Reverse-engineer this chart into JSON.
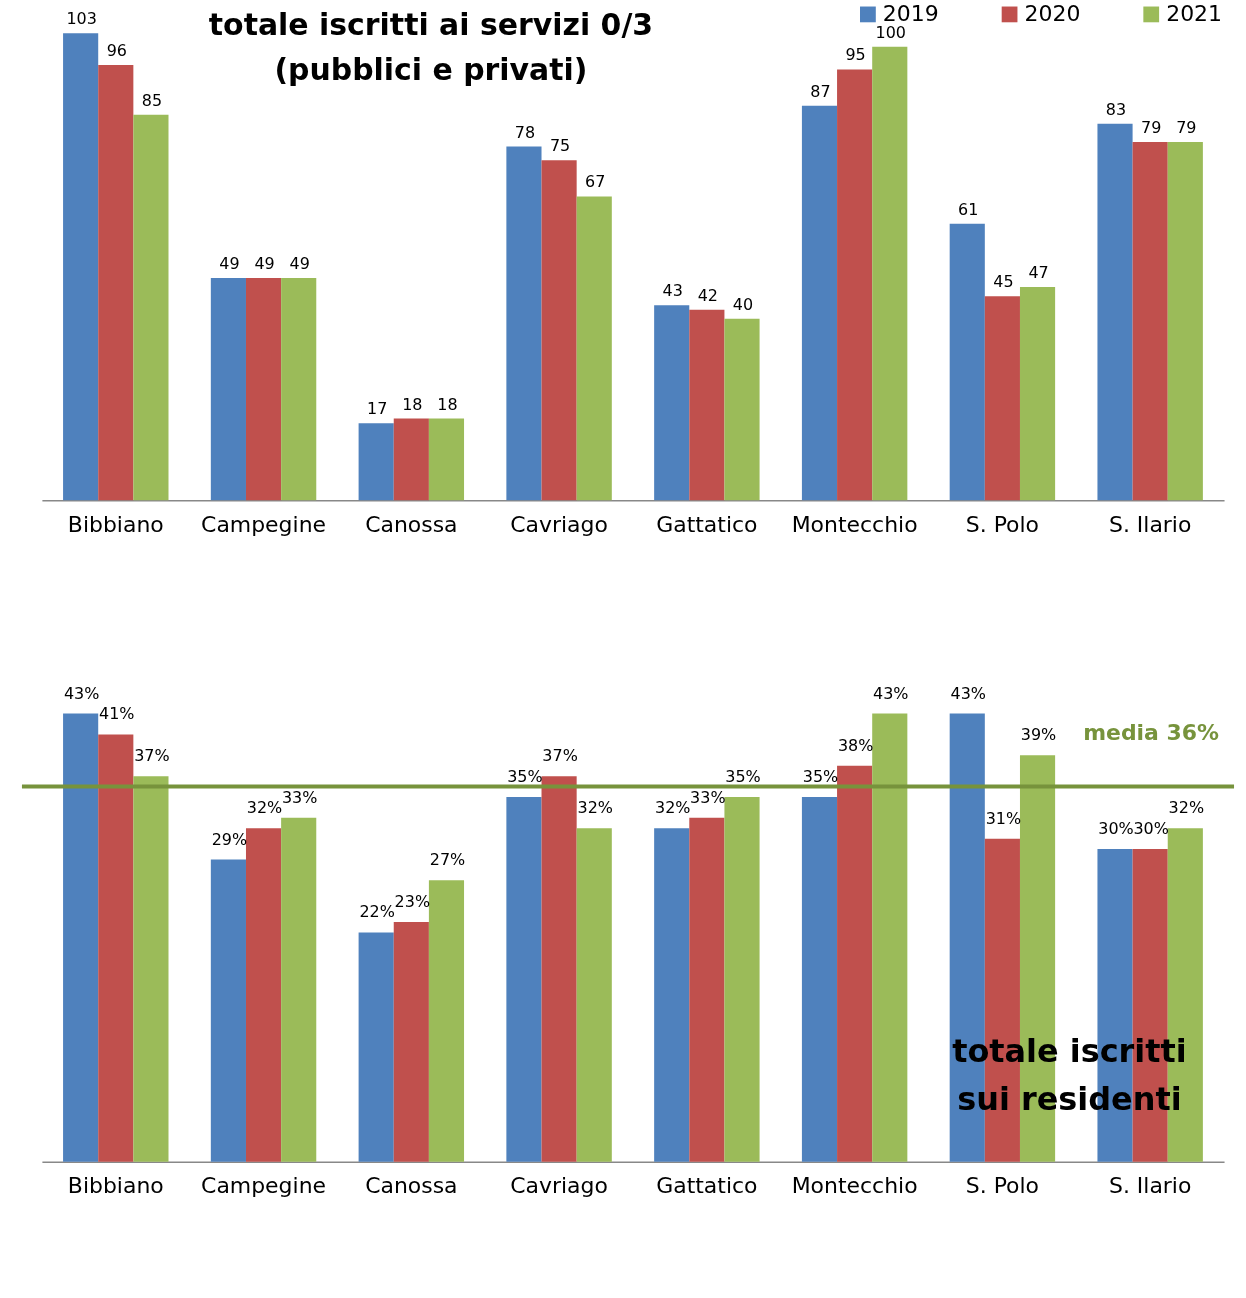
{
  "chart_data": [
    {
      "type": "bar",
      "title": "totale iscritti ai servizi 0/3\n(pubblici e privati)",
      "categories": [
        "Bibbiano",
        "Campegine",
        "Canossa",
        "Cavriago",
        "Gattatico",
        "Montecchio",
        "S. Polo",
        "S. Ilario"
      ],
      "series": [
        {
          "name": "2019",
          "color": "#4f81bd",
          "values": [
            103,
            49,
            17,
            78,
            43,
            87,
            61,
            83
          ]
        },
        {
          "name": "2020",
          "color": "#c0504d",
          "values": [
            96,
            49,
            18,
            75,
            42,
            95,
            45,
            79
          ]
        },
        {
          "name": "2021",
          "color": "#9bbb59",
          "values": [
            85,
            49,
            18,
            67,
            40,
            100,
            47,
            79
          ]
        }
      ],
      "data_labels": true,
      "legend": "top right",
      "tick_labels": "x",
      "grid": false
    },
    {
      "type": "bar",
      "title": "totale iscritti\nsui residenti",
      "categories": [
        "Bibbiano",
        "Campegine",
        "Canossa",
        "Cavriago",
        "Gattatico",
        "Montecchio",
        "S. Polo",
        "S. Ilario"
      ],
      "series": [
        {
          "name": "2019",
          "color": "#4f81bd",
          "values": [
            43,
            29,
            22,
            35,
            32,
            35,
            43,
            30
          ],
          "value_labels": [
            "43%",
            "29%",
            "22%",
            "35%",
            "32%",
            "35%",
            "43%",
            "30%"
          ]
        },
        {
          "name": "2020",
          "color": "#c0504d",
          "values": [
            41,
            32,
            23,
            37,
            33,
            38,
            31,
            30
          ],
          "value_labels": [
            "41%",
            "32%",
            "23%",
            "37%",
            "33%",
            "38%",
            "31%",
            "30%"
          ]
        },
        {
          "name": "2021",
          "color": "#9bbb59",
          "values": [
            37,
            33,
            27,
            32,
            35,
            43,
            39,
            32
          ],
          "value_labels": [
            "37%",
            "33%",
            "27%",
            "32%",
            "35%",
            "43%",
            "39%",
            "32%"
          ]
        }
      ],
      "legend": false,
      "tick_labels": "x",
      "grid": false,
      "ref_lines": [
        {
          "axis": "y",
          "value": 36,
          "label": "media 36%",
          "color": "#77933c"
        }
      ]
    }
  ]
}
